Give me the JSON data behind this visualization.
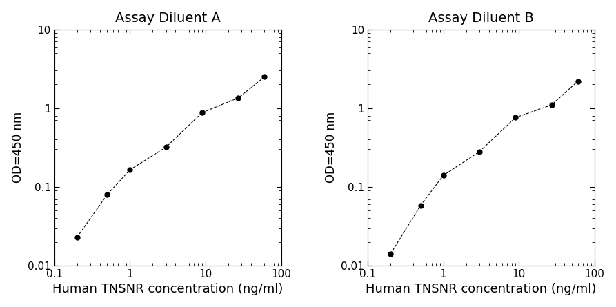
{
  "panel_A": {
    "title": "Assay Diluent A",
    "x": [
      0.2,
      0.5,
      1.0,
      3.0,
      9.0,
      27.0,
      60.0
    ],
    "y": [
      0.023,
      0.08,
      0.165,
      0.32,
      0.88,
      1.35,
      2.5
    ],
    "xlim": [
      0.1,
      100
    ],
    "ylim": [
      0.01,
      10
    ]
  },
  "panel_B": {
    "title": "Assay Diluent B",
    "x": [
      0.2,
      0.5,
      1.0,
      3.0,
      9.0,
      27.0,
      60.0
    ],
    "y": [
      0.014,
      0.058,
      0.14,
      0.28,
      0.76,
      1.1,
      2.2
    ],
    "xlim": [
      0.1,
      100
    ],
    "ylim": [
      0.01,
      10
    ]
  },
  "xlabel": "Human TNSNR concentration (ng/ml)",
  "ylabel": "OD=450 nm",
  "line_color": "#000000",
  "marker": "o",
  "markersize": 5,
  "markerfacecolor": "#000000",
  "title_fontsize": 14,
  "ylabel_fontsize": 12,
  "xlabel_fontsize": 13,
  "tick_labelsize": 11,
  "background_color": "#ffffff",
  "xticks": [
    0.1,
    1,
    10,
    100
  ],
  "yticks": [
    0.01,
    0.1,
    1,
    10
  ],
  "xtick_labels": [
    "0.1",
    "1",
    "10",
    "100"
  ],
  "ytick_labels": [
    "0.01",
    "0.1",
    "1",
    "10"
  ]
}
